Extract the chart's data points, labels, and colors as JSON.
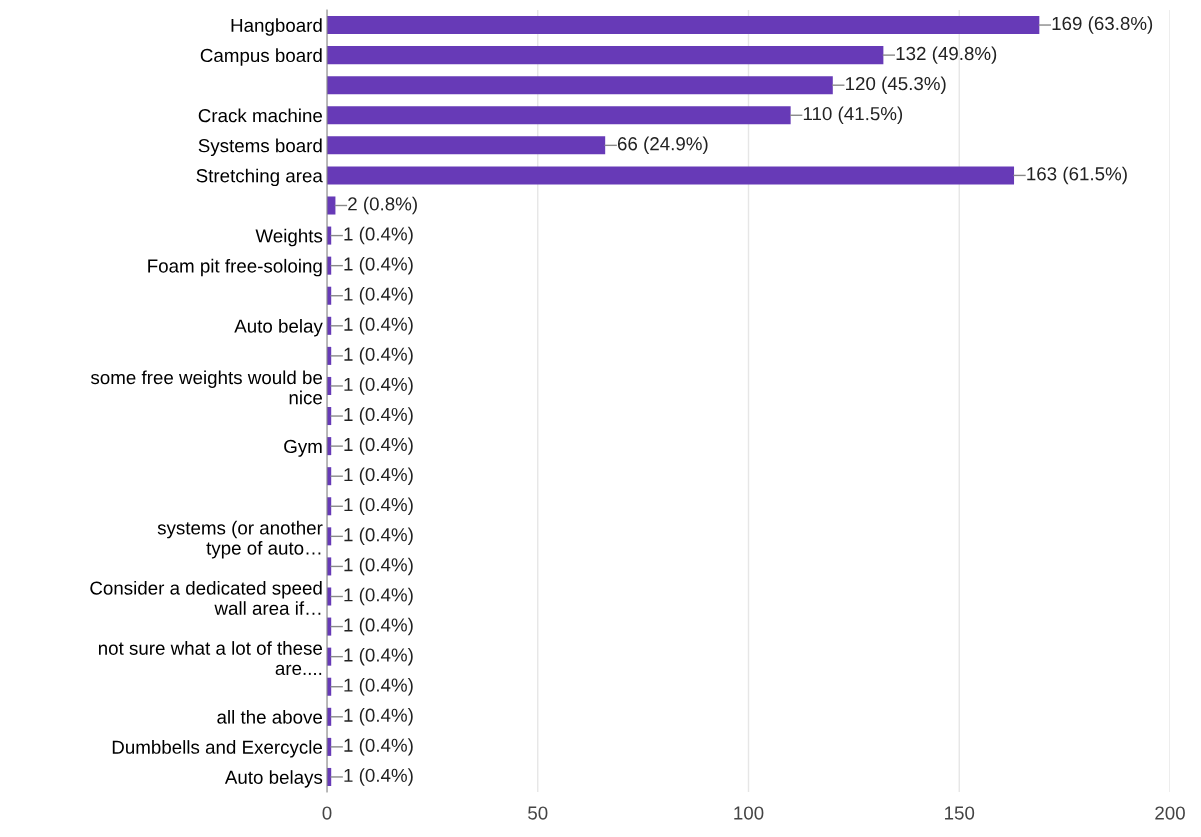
{
  "chart_data": {
    "type": "bar",
    "orientation": "horizontal",
    "categories": [
      "Hangboard",
      "Campus board",
      null,
      "Crack machine",
      "Systems board",
      "Stretching area",
      null,
      "Weights",
      "Foam pit free-soloing",
      null,
      "Auto belay",
      null,
      "some free weights would be\nnice",
      null,
      "Gym",
      null,
      null,
      "systems (or another\ntype of auto…",
      null,
      "Consider a dedicated speed\nwall area if…",
      null,
      "not sure what a lot of these\nare....",
      null,
      "all the above",
      "Dumbbells and Exercycle",
      "Auto belays"
    ],
    "values": [
      169,
      132,
      120,
      110,
      66,
      163,
      2,
      1,
      1,
      1,
      1,
      1,
      1,
      1,
      1,
      1,
      1,
      1,
      1,
      1,
      1,
      1,
      1,
      1,
      1,
      1
    ],
    "value_labels": [
      "169 (63.8%)",
      "132 (49.8%)",
      "120 (45.3%)",
      "110 (41.5%)",
      "66 (24.9%)",
      "163 (61.5%)",
      "2 (0.8%)",
      "1 (0.4%)",
      "1 (0.4%)",
      "1 (0.4%)",
      "1 (0.4%)",
      "1 (0.4%)",
      "1 (0.4%)",
      "1 (0.4%)",
      "1 (0.4%)",
      "1 (0.4%)",
      "1 (0.4%)",
      "1 (0.4%)",
      "1 (0.4%)",
      "1 (0.4%)",
      "1 (0.4%)",
      "1 (0.4%)",
      "1 (0.4%)",
      "1 (0.4%)",
      "1 (0.4%)",
      "1 (0.4%)"
    ],
    "color": "#673ab7",
    "xlim": [
      0,
      200
    ],
    "xticks": [
      0,
      50,
      100,
      150,
      200
    ],
    "grid": "x"
  }
}
